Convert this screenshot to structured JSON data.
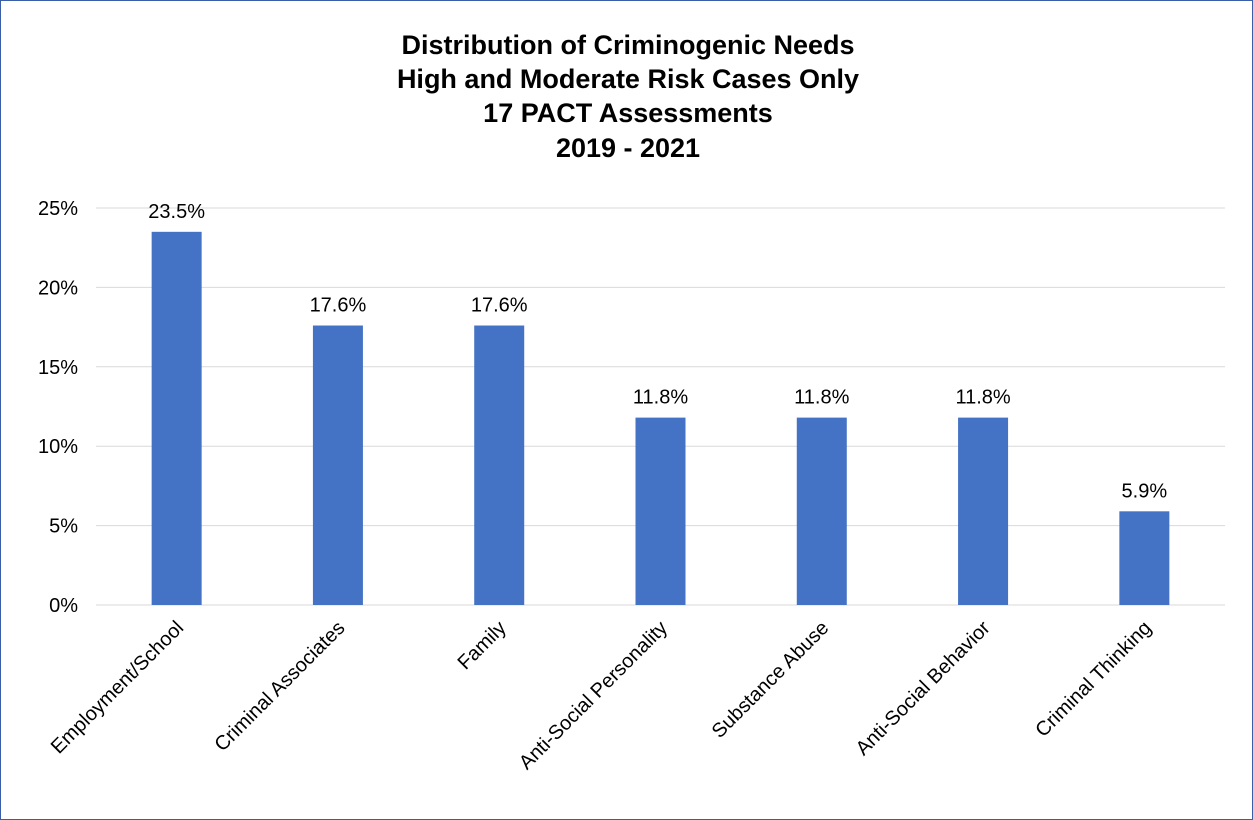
{
  "chart_data": {
    "type": "bar",
    "title_lines": [
      "Distribution of Criminogenic Needs",
      "High and Moderate Risk Cases Only",
      "17 PACT Assessments",
      "2019 - 2021"
    ],
    "categories": [
      "Employment/School",
      "Criminal Associates",
      "Family",
      "Anti-Social Personality",
      "Substance Abuse",
      "Anti-Social Behavior",
      "Criminal Thinking"
    ],
    "values": [
      23.5,
      17.6,
      17.6,
      11.8,
      11.8,
      11.8,
      5.9
    ],
    "data_labels": [
      "23.5%",
      "17.6%",
      "17.6%",
      "11.8%",
      "11.8%",
      "11.8%",
      "5.9%"
    ],
    "y_ticks": [
      0,
      5,
      10,
      15,
      20,
      25
    ],
    "y_tick_labels": [
      "0%",
      "5%",
      "10%",
      "15%",
      "20%",
      "25%"
    ],
    "ylim": [
      0,
      25
    ],
    "grid": true,
    "legend": "none",
    "bar_color": "#4472c4",
    "grid_color": "#d9d9d9",
    "border_color": "#3b5ea8"
  }
}
